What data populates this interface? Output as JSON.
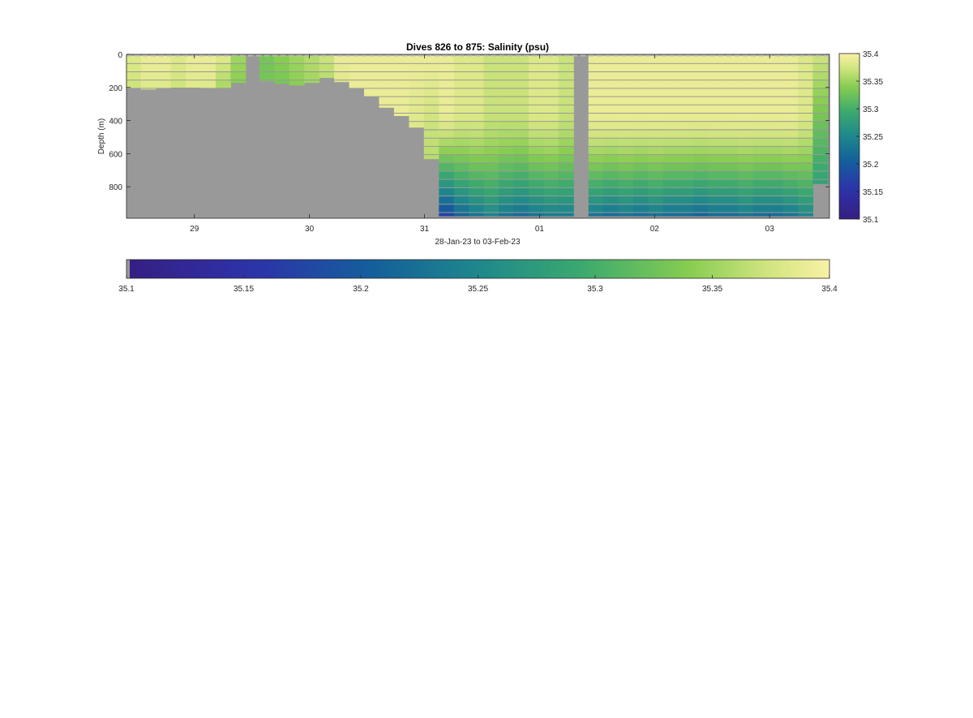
{
  "chart_data": {
    "type": "heatmap",
    "title": "Dives 826 to 875: Salinity (psu)",
    "xlabel": "28-Jan-23 to 03-Feb-23",
    "ylabel": "Depth (m)",
    "x_tick_labels": [
      "29",
      "30",
      "31",
      "01",
      "02",
      "03"
    ],
    "x_tick_days": [
      29,
      30,
      31,
      32,
      33,
      34
    ],
    "xlim_days": [
      28.41,
      34.52
    ],
    "y_tick_labels": [
      "0",
      "200",
      "400",
      "600",
      "800"
    ],
    "y_ticks": [
      0,
      200,
      400,
      600,
      800
    ],
    "ylim": [
      0,
      990
    ],
    "y_reversed": true,
    "colormap": "yellow-green-blue",
    "clim": [
      35.1,
      35.4
    ],
    "colorbar_ticks": [
      "35.1",
      "35.15",
      "35.2",
      "35.25",
      "35.3",
      "35.35",
      "35.4"
    ],
    "colorbar_values": [
      35.1,
      35.15,
      35.2,
      35.25,
      35.3,
      35.35,
      35.4
    ],
    "mask_color": "#999999",
    "dives": [
      {
        "dive": 826,
        "day": 28.47,
        "max_depth": 200,
        "surface": 35.38,
        "deep": 35.37
      },
      {
        "dive": 827,
        "day": 28.6,
        "max_depth": 210,
        "surface": 35.39,
        "deep": 35.38
      },
      {
        "dive": 828,
        "day": 28.73,
        "max_depth": 205,
        "surface": 35.39,
        "deep": 35.38
      },
      {
        "dive": 829,
        "day": 28.86,
        "max_depth": 198,
        "surface": 35.38,
        "deep": 35.37
      },
      {
        "dive": 830,
        "day": 28.99,
        "max_depth": 198,
        "surface": 35.39,
        "deep": 35.38
      },
      {
        "dive": 831,
        "day": 29.12,
        "max_depth": 205,
        "surface": 35.39,
        "deep": 35.38
      },
      {
        "dive": 832,
        "day": 29.25,
        "max_depth": 200,
        "surface": 35.38,
        "deep": 35.35
      },
      {
        "dive": 833,
        "day": 29.38,
        "max_depth": 170,
        "surface": 35.35,
        "deep": 35.34
      },
      {
        "dive": 834,
        "day": 29.5,
        "max_depth": null,
        "surface": null,
        "deep": null
      },
      {
        "dive": 835,
        "day": 29.63,
        "max_depth": 160,
        "surface": 35.33,
        "deep": 35.33
      },
      {
        "dive": 836,
        "day": 29.76,
        "max_depth": 175,
        "surface": 35.34,
        "deep": 35.33
      },
      {
        "dive": 837,
        "day": 29.89,
        "max_depth": 185,
        "surface": 35.35,
        "deep": 35.34
      },
      {
        "dive": 838,
        "day": 30.02,
        "max_depth": 170,
        "surface": 35.36,
        "deep": 35.35
      },
      {
        "dive": 839,
        "day": 30.15,
        "max_depth": 140,
        "surface": 35.37,
        "deep": 35.36
      },
      {
        "dive": 840,
        "day": 30.28,
        "max_depth": 165,
        "surface": 35.39,
        "deep": 35.38
      },
      {
        "dive": 841,
        "day": 30.41,
        "max_depth": 205,
        "surface": 35.39,
        "deep": 35.39
      },
      {
        "dive": 842,
        "day": 30.54,
        "max_depth": 250,
        "surface": 35.39,
        "deep": 35.39
      },
      {
        "dive": 843,
        "day": 30.67,
        "max_depth": 320,
        "surface": 35.39,
        "deep": 35.39
      },
      {
        "dive": 844,
        "day": 30.8,
        "max_depth": 370,
        "surface": 35.39,
        "deep": 35.39
      },
      {
        "dive": 845,
        "day": 30.93,
        "max_depth": 440,
        "surface": 35.39,
        "deep": 35.38
      },
      {
        "dive": 846,
        "day": 31.06,
        "max_depth": 630,
        "surface": 35.39,
        "deep": 35.36
      },
      {
        "dive": 847,
        "day": 31.19,
        "max_depth": 975,
        "surface": 35.39,
        "deep": 35.16
      },
      {
        "dive": 848,
        "day": 31.32,
        "max_depth": 975,
        "surface": 35.38,
        "deep": 35.2
      },
      {
        "dive": 849,
        "day": 31.45,
        "max_depth": 975,
        "surface": 35.38,
        "deep": 35.22
      },
      {
        "dive": 850,
        "day": 31.58,
        "max_depth": 975,
        "surface": 35.37,
        "deep": 35.24
      },
      {
        "dive": 851,
        "day": 31.71,
        "max_depth": 975,
        "surface": 35.37,
        "deep": 35.22
      },
      {
        "dive": 852,
        "day": 31.84,
        "max_depth": 975,
        "surface": 35.37,
        "deep": 35.21
      },
      {
        "dive": 853,
        "day": 31.97,
        "max_depth": 975,
        "surface": 35.38,
        "deep": 35.22
      },
      {
        "dive": 854,
        "day": 32.1,
        "max_depth": 975,
        "surface": 35.38,
        "deep": 35.23
      },
      {
        "dive": 855,
        "day": 32.23,
        "max_depth": 975,
        "surface": 35.37,
        "deep": 35.23
      },
      {
        "dive": 856,
        "day": 32.36,
        "max_depth": null,
        "surface": null,
        "deep": null
      },
      {
        "dive": 857,
        "day": 32.49,
        "max_depth": 975,
        "surface": 35.39,
        "deep": 35.22
      },
      {
        "dive": 858,
        "day": 32.62,
        "max_depth": 975,
        "surface": 35.39,
        "deep": 35.21
      },
      {
        "dive": 859,
        "day": 32.75,
        "max_depth": 975,
        "surface": 35.39,
        "deep": 35.22
      },
      {
        "dive": 860,
        "day": 32.88,
        "max_depth": 975,
        "surface": 35.39,
        "deep": 35.21
      },
      {
        "dive": 861,
        "day": 33.01,
        "max_depth": 975,
        "surface": 35.39,
        "deep": 35.22
      },
      {
        "dive": 862,
        "day": 33.14,
        "max_depth": 975,
        "surface": 35.39,
        "deep": 35.21
      },
      {
        "dive": 863,
        "day": 33.27,
        "max_depth": 975,
        "surface": 35.39,
        "deep": 35.21
      },
      {
        "dive": 864,
        "day": 33.4,
        "max_depth": 975,
        "surface": 35.39,
        "deep": 35.2
      },
      {
        "dive": 865,
        "day": 33.53,
        "max_depth": 975,
        "surface": 35.39,
        "deep": 35.21
      },
      {
        "dive": 866,
        "day": 33.66,
        "max_depth": 975,
        "surface": 35.39,
        "deep": 35.21
      },
      {
        "dive": 867,
        "day": 33.79,
        "max_depth": 975,
        "surface": 35.39,
        "deep": 35.22
      },
      {
        "dive": 868,
        "day": 33.92,
        "max_depth": 975,
        "surface": 35.39,
        "deep": 35.21
      },
      {
        "dive": 869,
        "day": 34.05,
        "max_depth": 975,
        "surface": 35.39,
        "deep": 35.21
      },
      {
        "dive": 870,
        "day": 34.18,
        "max_depth": 975,
        "surface": 35.39,
        "deep": 35.22
      },
      {
        "dive": 871,
        "day": 34.31,
        "max_depth": 975,
        "surface": 35.38,
        "deep": 35.24
      },
      {
        "dive": 872,
        "day": 34.44,
        "max_depth": 780,
        "surface": 35.37,
        "deep": 35.28
      }
    ]
  }
}
